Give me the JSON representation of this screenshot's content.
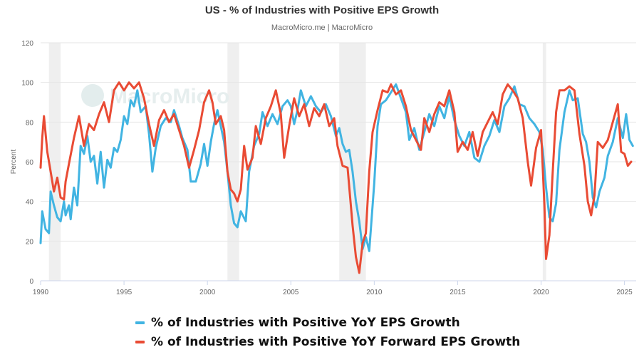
{
  "title": "US - % of Industries with Positive EPS Growth",
  "subtitle": "MacroMicro.me | MacroMicro",
  "watermark": "MacroMicro",
  "colors": {
    "blue": "#41b4e2",
    "red": "#e94b34",
    "recession": "#efefef",
    "grid": "#e6e6e6"
  },
  "legend": [
    {
      "label": "% of Industries with Positive YoY EPS Growth",
      "color": "#41b4e2"
    },
    {
      "label": "% of Industries with Positive YoY Forward EPS Growth",
      "color": "#e94b34"
    }
  ],
  "chart_data": {
    "type": "line",
    "ylabel": "Percent",
    "ylim": [
      0,
      120
    ],
    "yticks": [
      0,
      20,
      40,
      60,
      80,
      100,
      120
    ],
    "xlim": [
      1990,
      2025.7
    ],
    "xticks": [
      1990,
      1995,
      2000,
      2005,
      2010,
      2015,
      2020,
      2025
    ],
    "grid": true,
    "legend_position": "bottom",
    "recession_periods": [
      [
        1990.5,
        1991.2
      ],
      [
        2001.2,
        2001.9
      ],
      [
        2007.9,
        2009.5
      ],
      [
        2020.1,
        2020.3
      ]
    ],
    "series": [
      {
        "name": "% of Industries with Positive YoY EPS Growth",
        "color": "#41b4e2",
        "points": [
          [
            1990.0,
            19
          ],
          [
            1990.1,
            35
          ],
          [
            1990.3,
            26
          ],
          [
            1990.5,
            24
          ],
          [
            1990.6,
            45
          ],
          [
            1990.8,
            38
          ],
          [
            1991.0,
            32
          ],
          [
            1991.2,
            30
          ],
          [
            1991.4,
            40
          ],
          [
            1991.5,
            33
          ],
          [
            1991.7,
            38
          ],
          [
            1991.8,
            31
          ],
          [
            1992.0,
            47
          ],
          [
            1992.2,
            38
          ],
          [
            1992.4,
            68
          ],
          [
            1992.6,
            64
          ],
          [
            1992.8,
            73
          ],
          [
            1993.0,
            60
          ],
          [
            1993.2,
            63
          ],
          [
            1993.4,
            49
          ],
          [
            1993.6,
            65
          ],
          [
            1993.8,
            47
          ],
          [
            1994.0,
            61
          ],
          [
            1994.2,
            57
          ],
          [
            1994.4,
            67
          ],
          [
            1994.6,
            65
          ],
          [
            1994.8,
            71
          ],
          [
            1995.0,
            83
          ],
          [
            1995.2,
            79
          ],
          [
            1995.4,
            91
          ],
          [
            1995.6,
            88
          ],
          [
            1995.8,
            96
          ],
          [
            1996.0,
            85
          ],
          [
            1996.3,
            88
          ],
          [
            1996.5,
            74
          ],
          [
            1996.7,
            55
          ],
          [
            1996.9,
            67
          ],
          [
            1997.2,
            78
          ],
          [
            1997.5,
            82
          ],
          [
            1997.8,
            80
          ],
          [
            1998.0,
            86
          ],
          [
            1998.3,
            78
          ],
          [
            1998.5,
            72
          ],
          [
            1998.8,
            66
          ],
          [
            1999.0,
            50
          ],
          [
            1999.3,
            50
          ],
          [
            1999.6,
            59
          ],
          [
            1999.8,
            69
          ],
          [
            2000.0,
            58
          ],
          [
            2000.2,
            70
          ],
          [
            2000.4,
            79
          ],
          [
            2000.6,
            86
          ],
          [
            2000.8,
            78
          ],
          [
            2001.0,
            70
          ],
          [
            2001.2,
            55
          ],
          [
            2001.4,
            38
          ],
          [
            2001.6,
            29
          ],
          [
            2001.8,
            27
          ],
          [
            2002.0,
            35
          ],
          [
            2002.3,
            30
          ],
          [
            2002.5,
            55
          ],
          [
            2002.8,
            68
          ],
          [
            2003.1,
            74
          ],
          [
            2003.3,
            85
          ],
          [
            2003.6,
            78
          ],
          [
            2003.9,
            84
          ],
          [
            2004.2,
            79
          ],
          [
            2004.5,
            88
          ],
          [
            2004.8,
            91
          ],
          [
            2005.0,
            88
          ],
          [
            2005.2,
            79
          ],
          [
            2005.4,
            86
          ],
          [
            2005.6,
            96
          ],
          [
            2005.9,
            88
          ],
          [
            2006.2,
            93
          ],
          [
            2006.5,
            88
          ],
          [
            2006.8,
            85
          ],
          [
            2007.1,
            89
          ],
          [
            2007.4,
            83
          ],
          [
            2007.7,
            73
          ],
          [
            2007.9,
            77
          ],
          [
            2008.1,
            69
          ],
          [
            2008.3,
            65
          ],
          [
            2008.5,
            66
          ],
          [
            2008.7,
            55
          ],
          [
            2008.9,
            40
          ],
          [
            2009.1,
            30
          ],
          [
            2009.3,
            16
          ],
          [
            2009.5,
            22
          ],
          [
            2009.7,
            15
          ],
          [
            2010.0,
            49
          ],
          [
            2010.2,
            78
          ],
          [
            2010.4,
            89
          ],
          [
            2010.7,
            91
          ],
          [
            2011.0,
            95
          ],
          [
            2011.3,
            99
          ],
          [
            2011.6,
            92
          ],
          [
            2011.9,
            85
          ],
          [
            2012.1,
            71
          ],
          [
            2012.4,
            77
          ],
          [
            2012.7,
            66
          ],
          [
            2013.0,
            75
          ],
          [
            2013.3,
            84
          ],
          [
            2013.6,
            78
          ],
          [
            2013.9,
            88
          ],
          [
            2014.2,
            82
          ],
          [
            2014.5,
            93
          ],
          [
            2014.8,
            81
          ],
          [
            2015.1,
            73
          ],
          [
            2015.4,
            68
          ],
          [
            2015.7,
            75
          ],
          [
            2016.0,
            62
          ],
          [
            2016.3,
            60
          ],
          [
            2016.6,
            68
          ],
          [
            2016.9,
            73
          ],
          [
            2017.2,
            81
          ],
          [
            2017.5,
            75
          ],
          [
            2017.8,
            88
          ],
          [
            2018.1,
            92
          ],
          [
            2018.4,
            98
          ],
          [
            2018.7,
            89
          ],
          [
            2019.0,
            88
          ],
          [
            2019.3,
            82
          ],
          [
            2019.6,
            79
          ],
          [
            2019.9,
            75
          ],
          [
            2020.1,
            66
          ],
          [
            2020.3,
            47
          ],
          [
            2020.5,
            32
          ],
          [
            2020.7,
            30
          ],
          [
            2020.9,
            39
          ],
          [
            2021.1,
            66
          ],
          [
            2021.4,
            85
          ],
          [
            2021.7,
            96
          ],
          [
            2021.9,
            91
          ],
          [
            2022.2,
            92
          ],
          [
            2022.5,
            74
          ],
          [
            2022.7,
            70
          ],
          [
            2022.9,
            60
          ],
          [
            2023.1,
            42
          ],
          [
            2023.3,
            37
          ],
          [
            2023.5,
            45
          ],
          [
            2023.8,
            52
          ],
          [
            2024.0,
            63
          ],
          [
            2024.3,
            70
          ],
          [
            2024.6,
            82
          ],
          [
            2024.9,
            72
          ],
          [
            2025.1,
            84
          ],
          [
            2025.3,
            71
          ],
          [
            2025.5,
            68
          ]
        ]
      },
      {
        "name": "% of Industries with Positive YoY Forward EPS Growth",
        "color": "#e94b34",
        "points": [
          [
            1990.0,
            57
          ],
          [
            1990.1,
            72
          ],
          [
            1990.2,
            83
          ],
          [
            1990.4,
            65
          ],
          [
            1990.6,
            55
          ],
          [
            1990.8,
            45
          ],
          [
            1991.0,
            52
          ],
          [
            1991.2,
            42
          ],
          [
            1991.4,
            41
          ],
          [
            1991.5,
            50
          ],
          [
            1991.7,
            59
          ],
          [
            1992.0,
            72
          ],
          [
            1992.3,
            83
          ],
          [
            1992.6,
            68
          ],
          [
            1992.9,
            79
          ],
          [
            1993.2,
            76
          ],
          [
            1993.5,
            84
          ],
          [
            1993.8,
            90
          ],
          [
            1994.1,
            80
          ],
          [
            1994.4,
            96
          ],
          [
            1994.7,
            100
          ],
          [
            1995.0,
            96
          ],
          [
            1995.3,
            100
          ],
          [
            1995.6,
            97
          ],
          [
            1995.9,
            100
          ],
          [
            1996.2,
            92
          ],
          [
            1996.5,
            79
          ],
          [
            1996.8,
            68
          ],
          [
            1997.1,
            81
          ],
          [
            1997.4,
            86
          ],
          [
            1997.7,
            80
          ],
          [
            1998.0,
            84
          ],
          [
            1998.3,
            76
          ],
          [
            1998.6,
            68
          ],
          [
            1998.9,
            57
          ],
          [
            1999.2,
            66
          ],
          [
            1999.5,
            76
          ],
          [
            1999.8,
            90
          ],
          [
            2000.1,
            96
          ],
          [
            2000.3,
            90
          ],
          [
            2000.5,
            79
          ],
          [
            2000.8,
            83
          ],
          [
            2001.0,
            76
          ],
          [
            2001.2,
            55
          ],
          [
            2001.4,
            46
          ],
          [
            2001.6,
            44
          ],
          [
            2001.8,
            40
          ],
          [
            2002.0,
            46
          ],
          [
            2002.2,
            68
          ],
          [
            2002.4,
            56
          ],
          [
            2002.7,
            62
          ],
          [
            2002.9,
            78
          ],
          [
            2003.2,
            69
          ],
          [
            2003.5,
            82
          ],
          [
            2003.8,
            88
          ],
          [
            2004.1,
            96
          ],
          [
            2004.4,
            84
          ],
          [
            2004.6,
            62
          ],
          [
            2004.9,
            78
          ],
          [
            2005.2,
            92
          ],
          [
            2005.5,
            83
          ],
          [
            2005.8,
            89
          ],
          [
            2006.1,
            78
          ],
          [
            2006.4,
            87
          ],
          [
            2006.7,
            83
          ],
          [
            2007.0,
            89
          ],
          [
            2007.3,
            78
          ],
          [
            2007.6,
            82
          ],
          [
            2007.8,
            68
          ],
          [
            2008.1,
            58
          ],
          [
            2008.4,
            57
          ],
          [
            2008.7,
            28
          ],
          [
            2008.9,
            12
          ],
          [
            2009.1,
            4
          ],
          [
            2009.3,
            19
          ],
          [
            2009.5,
            24
          ],
          [
            2009.7,
            55
          ],
          [
            2009.9,
            75
          ],
          [
            2010.2,
            86
          ],
          [
            2010.5,
            96
          ],
          [
            2010.8,
            95
          ],
          [
            2011.0,
            99
          ],
          [
            2011.3,
            94
          ],
          [
            2011.6,
            96
          ],
          [
            2011.9,
            88
          ],
          [
            2012.2,
            76
          ],
          [
            2012.5,
            71
          ],
          [
            2012.8,
            66
          ],
          [
            2013.0,
            82
          ],
          [
            2013.3,
            75
          ],
          [
            2013.6,
            84
          ],
          [
            2013.9,
            90
          ],
          [
            2014.2,
            88
          ],
          [
            2014.5,
            96
          ],
          [
            2014.8,
            85
          ],
          [
            2015.0,
            65
          ],
          [
            2015.3,
            70
          ],
          [
            2015.6,
            66
          ],
          [
            2015.9,
            75
          ],
          [
            2016.2,
            63
          ],
          [
            2016.5,
            75
          ],
          [
            2016.8,
            80
          ],
          [
            2017.1,
            85
          ],
          [
            2017.4,
            79
          ],
          [
            2017.7,
            94
          ],
          [
            2018.0,
            99
          ],
          [
            2018.3,
            96
          ],
          [
            2018.6,
            92
          ],
          [
            2018.9,
            82
          ],
          [
            2019.2,
            60
          ],
          [
            2019.4,
            48
          ],
          [
            2019.7,
            67
          ],
          [
            2020.0,
            76
          ],
          [
            2020.2,
            38
          ],
          [
            2020.3,
            11
          ],
          [
            2020.5,
            23
          ],
          [
            2020.7,
            55
          ],
          [
            2020.9,
            85
          ],
          [
            2021.1,
            96
          ],
          [
            2021.4,
            96
          ],
          [
            2021.7,
            98
          ],
          [
            2022.0,
            96
          ],
          [
            2022.3,
            74
          ],
          [
            2022.6,
            58
          ],
          [
            2022.8,
            40
          ],
          [
            2023.0,
            33
          ],
          [
            2023.2,
            43
          ],
          [
            2023.4,
            70
          ],
          [
            2023.7,
            67
          ],
          [
            2024.0,
            71
          ],
          [
            2024.3,
            80
          ],
          [
            2024.6,
            89
          ],
          [
            2024.8,
            65
          ],
          [
            2025.0,
            64
          ],
          [
            2025.2,
            58
          ],
          [
            2025.4,
            60
          ]
        ]
      }
    ]
  }
}
